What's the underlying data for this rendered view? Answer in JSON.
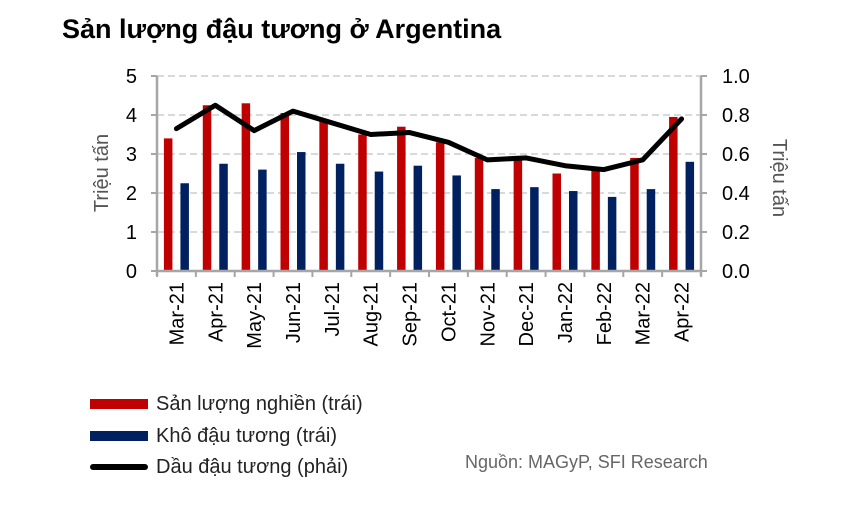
{
  "title": "Sản lượng đậu tương ở Argentina",
  "source": "Nguồn: MAGyP, SFI Research",
  "colors": {
    "crush": "#c00000",
    "meal": "#002060",
    "oil": "#000000",
    "axis": "#a6a6a6",
    "grid": "#d9d9d9"
  },
  "legend": [
    {
      "label": "Sản lượng nghiền (trái)",
      "type": "bar",
      "color": "#c00000"
    },
    {
      "label": "Khô đậu tương (trái)",
      "type": "bar",
      "color": "#002060"
    },
    {
      "label": "Dầu đậu tương (phải)",
      "type": "line",
      "color": "#000000"
    }
  ],
  "chart_data": {
    "type": "bar",
    "title": "Sản lượng đậu tương ở Argentina",
    "categories": [
      "Mar-21",
      "Apr-21",
      "May-21",
      "Jun-21",
      "Jul-21",
      "Aug-21",
      "Sep-21",
      "Oct-21",
      "Nov-21",
      "Dec-21",
      "Jan-22",
      "Feb-22",
      "Mar-22",
      "Apr-22"
    ],
    "ylabel": "Triệu tấn",
    "ylim": [
      0,
      5
    ],
    "yticks": [
      "0",
      "1",
      "2",
      "3",
      "4",
      "5"
    ],
    "y2label": "Triệu tấn",
    "y2lim": [
      0.0,
      1.0
    ],
    "y2ticks": [
      "0.0",
      "0.2",
      "0.4",
      "0.6",
      "0.8",
      "1.0"
    ],
    "grid": true,
    "series": [
      {
        "name": "Sản lượng nghiền (trái)",
        "type": "bar",
        "axis": "left",
        "values": [
          3.4,
          4.25,
          4.3,
          4.05,
          3.85,
          3.5,
          3.7,
          3.3,
          2.9,
          2.9,
          2.5,
          2.6,
          2.9,
          3.95
        ]
      },
      {
        "name": "Khô đậu tương (trái)",
        "type": "bar",
        "axis": "left",
        "values": [
          2.25,
          2.75,
          2.6,
          3.05,
          2.75,
          2.55,
          2.7,
          2.45,
          2.1,
          2.15,
          2.05,
          1.9,
          2.1,
          2.8
        ]
      },
      {
        "name": "Dầu đậu tương (phải)",
        "type": "line",
        "axis": "right",
        "values": [
          0.73,
          0.85,
          0.72,
          0.82,
          0.76,
          0.7,
          0.71,
          0.66,
          0.57,
          0.58,
          0.54,
          0.52,
          0.57,
          0.78
        ]
      }
    ]
  }
}
